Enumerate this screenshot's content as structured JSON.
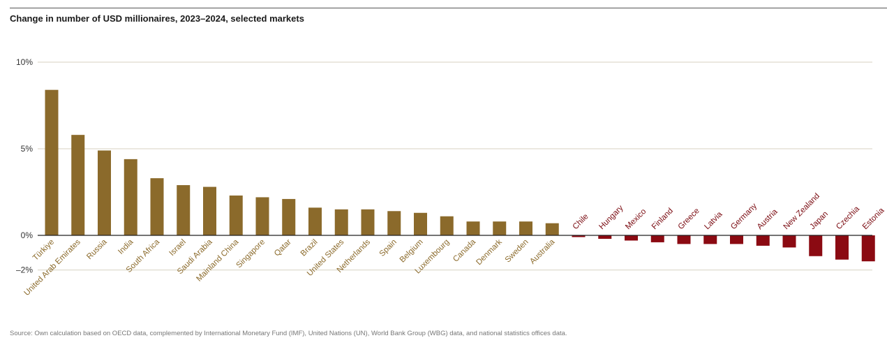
{
  "title": "Change in number of USD millionaires, 2023–2024, selected markets",
  "source": "Source: Own calculation based on OECD data, complemented by International Monetary Fund (IMF), United Nations (UN), World Bank Group (WBG) data, and national statistics offices data.",
  "colors": {
    "positive": "#8b6a2b",
    "negative": "#8b0a12",
    "positive_label": "#8b6a2b",
    "negative_label": "#7a0a10",
    "grid": "#d7d2c2",
    "zero_line": "#222222"
  },
  "chart_data": {
    "type": "bar",
    "title": "Change in number of USD millionaires, 2023–2024, selected markets",
    "xlabel": "",
    "ylabel": "",
    "ylim": [
      -2,
      10
    ],
    "yticks": [
      {
        "value": 10,
        "label": "10%"
      },
      {
        "value": 5,
        "label": "5%"
      },
      {
        "value": 0,
        "label": "0%"
      },
      {
        "value": -2,
        "label": "–2%"
      }
    ],
    "grid": true,
    "categories": [
      "Türkiye",
      "United Arab Emirates",
      "Russia",
      "India",
      "South Africa",
      "Israel",
      "Saudi Arabia",
      "Mainland China",
      "Singapore",
      "Qatar",
      "Brazil",
      "United States",
      "Netherlands",
      "Spain",
      "Belgium",
      "Luxembourg",
      "Canada",
      "Denmark",
      "Sweden",
      "Australia",
      "Chile",
      "Hungary",
      "Mexico",
      "Finland",
      "Greece",
      "Latvia",
      "Germany",
      "Austria",
      "New Zealand",
      "Japan",
      "Czechia",
      "Estonia"
    ],
    "values": [
      8.4,
      5.8,
      4.9,
      4.4,
      3.3,
      2.9,
      2.8,
      2.3,
      2.2,
      2.1,
      1.6,
      1.5,
      1.5,
      1.4,
      1.3,
      1.1,
      0.8,
      0.8,
      0.8,
      0.7,
      -0.1,
      -0.2,
      -0.3,
      -0.4,
      -0.5,
      -0.5,
      -0.5,
      -0.6,
      -0.7,
      -1.2,
      -1.4,
      -1.5
    ]
  }
}
